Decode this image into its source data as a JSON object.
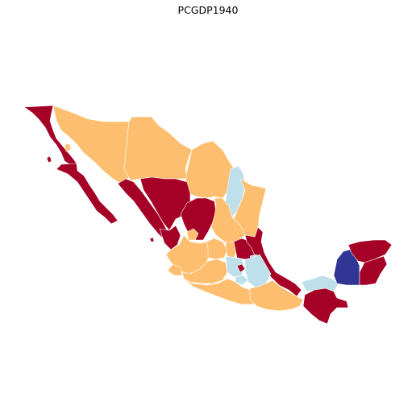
{
  "title": "PCGDP1940",
  "colors": {
    "q_high": "#a50026",
    "q_mid": "#fdbf6f",
    "q_lowmid": "#bde0eb",
    "q_low": "#313695"
  },
  "regions": [
    {
      "name": "baja-california",
      "q": "q_high"
    },
    {
      "name": "baja-california-sur",
      "q": "q_high"
    },
    {
      "name": "sonora",
      "q": "q_mid"
    },
    {
      "name": "chihuahua",
      "q": "q_mid"
    },
    {
      "name": "coahuila",
      "q": "q_mid"
    },
    {
      "name": "nuevo-leon",
      "q": "q_lowmid"
    },
    {
      "name": "tamaulipas",
      "q": "q_mid"
    },
    {
      "name": "sinaloa",
      "q": "q_high"
    },
    {
      "name": "durango",
      "q": "q_high"
    },
    {
      "name": "zacatecas",
      "q": "q_high"
    },
    {
      "name": "san-luis-potosi",
      "q": "q_mid"
    },
    {
      "name": "nayarit",
      "q": "q_high"
    },
    {
      "name": "aguascalientes",
      "q": "q_mid"
    },
    {
      "name": "jalisco",
      "q": "q_mid"
    },
    {
      "name": "guanajuato",
      "q": "q_mid"
    },
    {
      "name": "queretaro",
      "q": "q_mid"
    },
    {
      "name": "hidalgo",
      "q": "q_high"
    },
    {
      "name": "veracruz",
      "q": "q_high"
    },
    {
      "name": "colima",
      "q": "q_mid"
    },
    {
      "name": "michoacan",
      "q": "q_mid"
    },
    {
      "name": "mexico-state",
      "q": "q_lowmid"
    },
    {
      "name": "mexico-city",
      "q": "q_high"
    },
    {
      "name": "morelos",
      "q": "q_lowmid"
    },
    {
      "name": "tlaxcala",
      "q": "q_lowmid"
    },
    {
      "name": "puebla",
      "q": "q_lowmid"
    },
    {
      "name": "guerrero",
      "q": "q_mid"
    },
    {
      "name": "oaxaca",
      "q": "q_mid"
    },
    {
      "name": "tabasco",
      "q": "q_lowmid"
    },
    {
      "name": "chiapas",
      "q": "q_high"
    },
    {
      "name": "campeche",
      "q": "q_low"
    },
    {
      "name": "yucatan",
      "q": "q_high"
    },
    {
      "name": "quintana-roo",
      "q": "q_high"
    }
  ]
}
